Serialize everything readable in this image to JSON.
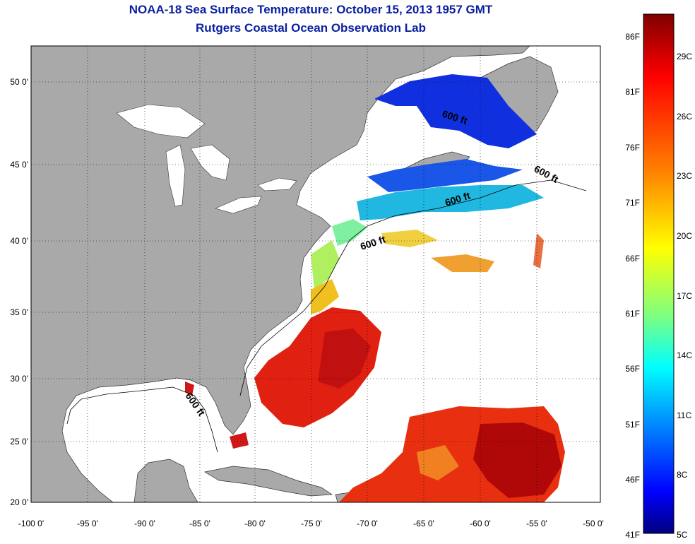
{
  "header": {
    "title": "NOAA-18 Sea Surface Temperature:  October 15, 2013 1957 GMT",
    "subtitle": "Rutgers Coastal Ocean Observation Lab"
  },
  "map": {
    "lat_labels": [
      "50 0'",
      "45 0'",
      "40 0'",
      "35 0'",
      "30 0'",
      "25 0'",
      "20 0'"
    ],
    "lon_labels": [
      "-100 0'",
      "-95 0'",
      "-90 0'",
      "-85 0'",
      "-80 0'",
      "-75 0'",
      "-70 0'",
      "-65 0'",
      "-60 0'",
      "-55 0'",
      "-50 0'"
    ],
    "contour_label": "600 ft",
    "land_color": "#a9a9a9",
    "water_color": "#ffffff"
  },
  "colorbar": {
    "f_labels": [
      "86F",
      "81F",
      "76F",
      "71F",
      "66F",
      "61F",
      "56F",
      "51F",
      "46F",
      "41F"
    ],
    "c_labels": [
      "29C",
      "26C",
      "23C",
      "20C",
      "17C",
      "14C",
      "11C",
      "8C",
      "5C"
    ],
    "gradient": [
      "#7f0000",
      "#ff0000",
      "#ff7f00",
      "#ffff00",
      "#7fff7f",
      "#00ffff",
      "#007fff",
      "#0000ff",
      "#00007f"
    ]
  }
}
